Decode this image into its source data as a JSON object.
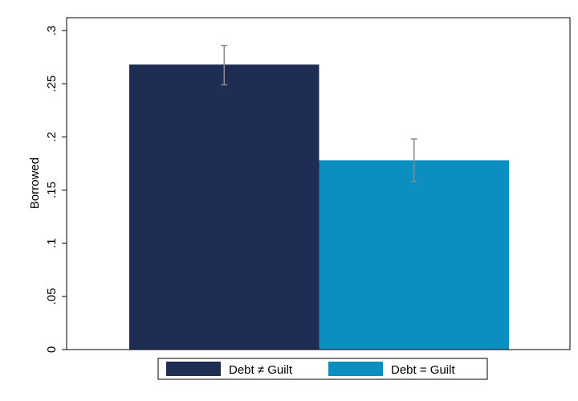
{
  "chart_data": {
    "type": "bar",
    "ylabel": "Borrowed",
    "xlabel": "",
    "ylim": [
      0,
      0.3
    ],
    "yticks": [
      {
        "value": 0,
        "label": "0"
      },
      {
        "value": 0.05,
        "label": ".05"
      },
      {
        "value": 0.1,
        "label": ".1"
      },
      {
        "value": 0.15,
        "label": ".15"
      },
      {
        "value": 0.2,
        "label": ".2"
      },
      {
        "value": 0.25,
        "label": ".25"
      },
      {
        "value": 0.3,
        "label": ".3"
      }
    ],
    "grid": false,
    "legend_position": "bottom",
    "series": [
      {
        "name": "Debt ≠ Guilt",
        "value": 0.268,
        "ci_low": 0.249,
        "ci_high": 0.286,
        "color": "#1f2d54"
      },
      {
        "name": "Debt = Guilt",
        "value": 0.178,
        "ci_low": 0.158,
        "ci_high": 0.198,
        "color": "#0b8fc1"
      }
    ]
  }
}
